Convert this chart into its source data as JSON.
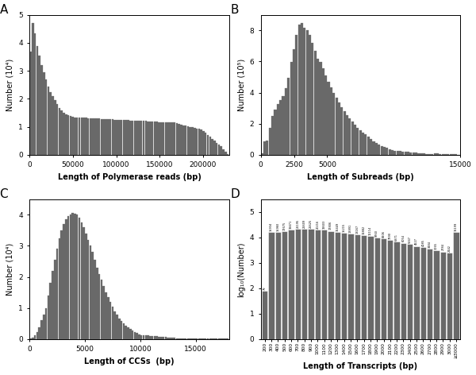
{
  "panel_A": {
    "label": "A",
    "xlabel": "Length of Polymerase reads (bp)",
    "ylabel": "Number (10⁴)",
    "xlim": [
      0,
      230000
    ],
    "ylim": [
      0,
      5.0
    ],
    "xticks": [
      0,
      50000,
      100000,
      150000,
      200000
    ],
    "yticks": [
      0,
      1,
      2,
      3,
      4,
      5
    ],
    "num_bins": 90
  },
  "panel_B": {
    "label": "B",
    "xlabel": "Length of Subreads (bp)",
    "ylabel": "Number (10⁵)",
    "xlim": [
      0,
      15000
    ],
    "ylim": [
      0,
      9.0
    ],
    "xticks": [
      0,
      2500,
      5000,
      15000
    ],
    "yticks": [
      0,
      2,
      4,
      6,
      8
    ],
    "num_bins": 75
  },
  "panel_C": {
    "label": "C",
    "xlabel": "Length of CCSs  (bp)",
    "ylabel": "Number (10⁴)",
    "xlim": [
      0,
      18000
    ],
    "ylim": [
      0,
      4.5
    ],
    "xticks": [
      0,
      5000,
      10000,
      15000
    ],
    "yticks": [
      0,
      1,
      2,
      3,
      4
    ],
    "num_bins": 90
  },
  "panel_D": {
    "label": "D",
    "xlabel": "Length of Transcripts (bp)",
    "ylabel": "log₁₀(Number)",
    "ylim": [
      0,
      5.5
    ],
    "yticks": [
      0,
      1,
      2,
      3,
      4,
      5
    ],
    "categories": [
      "200",
      "300",
      "400",
      "500",
      "600",
      "700",
      "800",
      "900",
      "1000",
      "1100",
      "1200",
      "1300",
      "1400",
      "1500",
      "1600",
      "1700",
      "1800",
      "1900",
      "2000",
      "2100",
      "2200",
      "2300",
      "2400",
      "2500",
      "2600",
      "2700",
      "2800",
      "2900",
      "3000",
      "≥3000"
    ],
    "values": [
      79,
      15934,
      15960,
      17675,
      19471,
      21195,
      21609,
      21625,
      20216,
      19603,
      17806,
      16449,
      15215,
      13991,
      13167,
      11882,
      11114,
      9760,
      8906,
      7890,
      6871,
      6054,
      5347,
      4527,
      4085,
      3484,
      3065,
      2784,
      2442,
      16199
    ]
  },
  "bar_color": "#696969",
  "figure_bg": "#ffffff",
  "label_fontsize": 7,
  "tick_fontsize": 6.5,
  "panel_label_fontsize": 11
}
